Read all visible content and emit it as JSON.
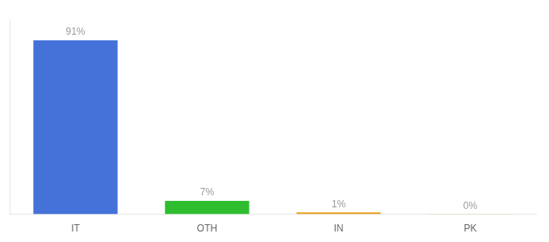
{
  "chart_data": {
    "type": "bar",
    "categories": [
      "IT",
      "OTH",
      "IN",
      "PK"
    ],
    "values": [
      91,
      7,
      1,
      0.15
    ],
    "value_labels": [
      "91%",
      "7%",
      "1%",
      "0%"
    ],
    "colors": [
      "#4472d9",
      "#2ebd2e",
      "#e8a020",
      "#e8a020"
    ],
    "ylim": [
      0,
      102
    ],
    "data_labels": true,
    "tick_labels": "x",
    "grid": false
  }
}
